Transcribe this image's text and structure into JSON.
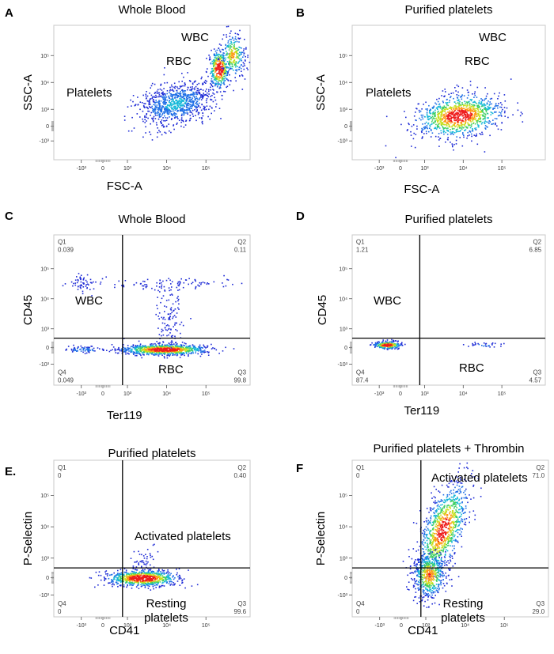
{
  "chart_data": [
    {
      "panel": "A",
      "type": "scatter",
      "title": "Whole Blood",
      "xlabel": "FSC-A",
      "ylabel": "SSC-A",
      "xticks": [
        "-10³",
        "0",
        "10³",
        "10⁴",
        "10⁵"
      ],
      "yticks": [
        "10⁵",
        "10⁴",
        "10³",
        "0",
        "-10³"
      ],
      "populations": [
        {
          "label": "Platelets",
          "fsc": [
            2,
            40
          ],
          "ssc": [
            3,
            35
          ]
        },
        {
          "label": "RBC",
          "fsc": [
            30,
            90
          ],
          "ssc": [
            18,
            90
          ]
        },
        {
          "label": "WBC",
          "fsc": [
            80,
            200
          ],
          "ssc": [
            50,
            200
          ]
        }
      ],
      "annotations": [
        {
          "text": "WBC",
          "ref": "upper-right"
        },
        {
          "text": "RBC",
          "ref": "upper-middle"
        },
        {
          "text": "Platelets",
          "ref": "middle-left"
        }
      ]
    },
    {
      "panel": "B",
      "type": "scatter",
      "title": "Purified platelets",
      "xlabel": "FSC-A",
      "ylabel": "SSC-A",
      "xticks": [
        "-10³",
        "0",
        "10³",
        "10⁴",
        "10⁵"
      ],
      "yticks": [
        "10⁵",
        "10⁴",
        "10³",
        "0",
        "-10³"
      ],
      "populations": [
        {
          "label": "Platelets",
          "fsc": [
            1,
            40
          ],
          "ssc": [
            0.3,
            8
          ]
        }
      ],
      "annotations": [
        {
          "text": "WBC",
          "ref": "upper-right"
        },
        {
          "text": "RBC",
          "ref": "upper-middle"
        },
        {
          "text": "Platelets",
          "ref": "middle-left"
        }
      ]
    },
    {
      "panel": "C",
      "type": "scatter",
      "title": "Whole Blood",
      "xlabel": "Ter119",
      "ylabel": "CD45",
      "xticks": [
        "-10³",
        "0",
        "10³",
        "10⁴",
        "10⁵"
      ],
      "yticks": [
        "10⁵",
        "10⁴",
        "10³",
        "0",
        "-10³"
      ],
      "gate": {
        "x": 0.7,
        "y": 0.5
      },
      "quadrants": [
        {
          "name": "Q1",
          "value": "0.039"
        },
        {
          "name": "Q2",
          "value": "0.11"
        },
        {
          "name": "Q3",
          "value": "99.8"
        },
        {
          "name": "Q4",
          "value": "0.049"
        }
      ],
      "annotations": [
        {
          "text": "WBC",
          "ref": "Q1"
        },
        {
          "text": "RBC",
          "ref": "Q3"
        }
      ]
    },
    {
      "panel": "D",
      "type": "scatter",
      "title": "Purified platelets",
      "xlabel": "Ter119",
      "ylabel": "CD45",
      "xticks": [
        "-10³",
        "0",
        "10³",
        "10⁴",
        "10⁵"
      ],
      "yticks": [
        "10⁵",
        "10⁴",
        "10³",
        "0",
        "-10³"
      ],
      "gate": {
        "x": 0.7,
        "y": 0.5
      },
      "quadrants": [
        {
          "name": "Q1",
          "value": "1.21"
        },
        {
          "name": "Q2",
          "value": "6.85"
        },
        {
          "name": "Q3",
          "value": "4.57"
        },
        {
          "name": "Q4",
          "value": "87.4"
        }
      ],
      "annotations": [
        {
          "text": "WBC",
          "ref": "Q1"
        },
        {
          "text": "RBC",
          "ref": "Q3"
        }
      ]
    },
    {
      "panel": "E.",
      "type": "scatter",
      "title": "Purified platelets",
      "xlabel": "CD41",
      "ylabel": "P-Selectin",
      "xticks": [
        "-10³",
        "0",
        "10³",
        "10⁴",
        "10⁵"
      ],
      "yticks": [
        "10⁵",
        "10⁴",
        "10³",
        "0",
        "-10³"
      ],
      "gate": {
        "x": 0.7,
        "y": 0.5
      },
      "quadrants": [
        {
          "name": "Q1",
          "value": "0"
        },
        {
          "name": "Q2",
          "value": "0.40"
        },
        {
          "name": "Q3",
          "value": "99.6"
        },
        {
          "name": "Q4",
          "value": "0"
        }
      ],
      "annotations": [
        {
          "text": "Activated platelets",
          "ref": "Q2"
        },
        {
          "text": "Resting",
          "ref": "Q3"
        },
        {
          "text": "platelets",
          "ref": "Q3"
        }
      ]
    },
    {
      "panel": "F",
      "type": "scatter",
      "title": "Purified platelets + Thrombin",
      "xlabel": "CD41",
      "ylabel": "P-Selectin",
      "xticks": [
        "-10³",
        "0",
        "10³",
        "10⁴",
        "10⁵"
      ],
      "yticks": [
        "10⁵",
        "10⁴",
        "10³",
        "0",
        "-10³"
      ],
      "gate": {
        "x": 0.7,
        "y": 0.5
      },
      "quadrants": [
        {
          "name": "Q1",
          "value": "0"
        },
        {
          "name": "Q2",
          "value": "71.0"
        },
        {
          "name": "Q3",
          "value": "29.0"
        },
        {
          "name": "Q4",
          "value": "0"
        }
      ],
      "annotations": [
        {
          "text": "Activated platelets",
          "ref": "Q2"
        },
        {
          "text": "Resting",
          "ref": "Q3"
        },
        {
          "text": "platelets",
          "ref": "Q3"
        }
      ]
    }
  ]
}
